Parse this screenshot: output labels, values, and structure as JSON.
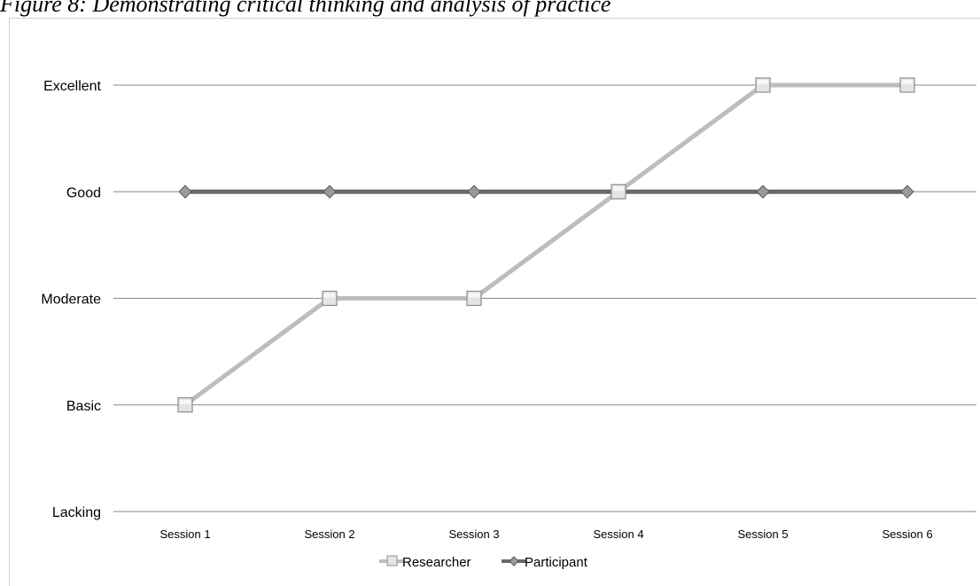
{
  "figure": {
    "caption": "Figure 8: Demonstrating critical thinking and analysis of practice"
  },
  "chart_data": {
    "type": "line",
    "title": "Figure 8: Demonstrating critical thinking and analysis of practice",
    "xlabel": "",
    "ylabel": "",
    "categories": [
      "Session 1",
      "Session 2",
      "Session 3",
      "Session 4",
      "Session 5",
      "Session 6"
    ],
    "y_levels": [
      "Lacking",
      "Basic",
      "Moderate",
      "Good",
      "Excellent"
    ],
    "ylim": [
      0,
      4
    ],
    "grid": true,
    "legend": "bottom",
    "series": [
      {
        "name": "Researcher",
        "values": [
          1,
          2,
          2,
          3,
          4,
          4
        ],
        "color": "#bdbdbd",
        "marker": "square"
      },
      {
        "name": "Participant",
        "values": [
          3,
          3,
          3,
          3,
          3,
          3
        ],
        "color": "#6a6a6a",
        "marker": "diamond"
      }
    ]
  }
}
